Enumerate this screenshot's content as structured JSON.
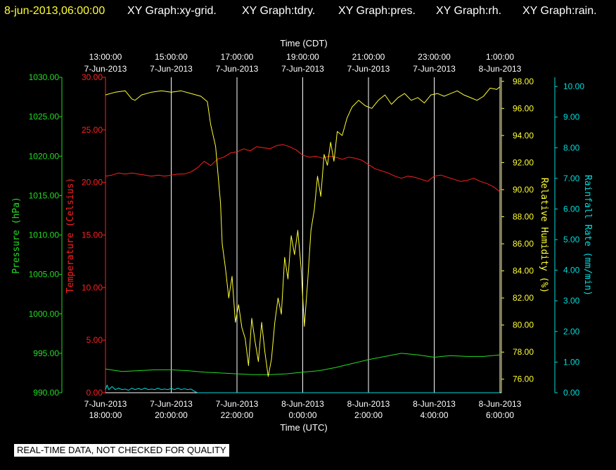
{
  "header": {
    "timestamp": "8-jun-2013,06:00:00",
    "graphs": [
      "XY Graph:xy-grid.",
      "XY Graph:tdry.",
      "XY Graph:pres.",
      "XY Graph:rh.",
      "XY Graph:rain."
    ]
  },
  "footer": {
    "quality_note": "REAL-TIME DATA, NOT CHECKED FOR QUALITY"
  },
  "colors": {
    "background": "#000000",
    "grid": "#ffffff",
    "temperature": "#ff2020",
    "pressure": "#22dd22",
    "humidity": "#ffff33",
    "rainfall": "#00dddd",
    "header_timestamp": "#ffff33",
    "header_text": "#ffffff"
  },
  "chart_data": {
    "type": "line",
    "grid": true,
    "x_top": {
      "title": "Time (CDT)",
      "ticks": [
        {
          "time": "13:00:00",
          "date": "7-Jun-2013"
        },
        {
          "time": "15:00:00",
          "date": "7-Jun-2013"
        },
        {
          "time": "17:00:00",
          "date": "7-Jun-2013"
        },
        {
          "time": "19:00:00",
          "date": "7-Jun-2013"
        },
        {
          "time": "21:00:00",
          "date": "7-Jun-2013"
        },
        {
          "time": "23:00:00",
          "date": "7-Jun-2013"
        },
        {
          "time": "1:00:00",
          "date": "8-Jun-2013"
        }
      ]
    },
    "x_bottom": {
      "title": "Time (UTC)",
      "ticks": [
        {
          "date": "7-Jun-2013",
          "time": "18:00:00"
        },
        {
          "date": "7-Jun-2013",
          "time": "20:00:00"
        },
        {
          "date": "7-Jun-2013",
          "time": "22:00:00"
        },
        {
          "date": "8-Jun-2013",
          "time": "0:00:00"
        },
        {
          "date": "8-Jun-2013",
          "time": "2:00:00"
        },
        {
          "date": "8-Jun-2013",
          "time": "4:00:00"
        },
        {
          "date": "8-Jun-2013",
          "time": "6:00:00"
        }
      ]
    },
    "x_unit": "hours since 2013-06-07 18:00 UTC",
    "xlim": [
      0,
      12
    ],
    "axes": {
      "pressure": {
        "label": "Pressure (hPa)",
        "ylim": [
          990,
          1030
        ],
        "ticks": [
          "1030.00",
          "1025.00",
          "1020.00",
          "1015.00",
          "1010.00",
          "1005.00",
          "1000.00",
          "995.00",
          "990.00"
        ]
      },
      "temperature": {
        "label": "Temperature (Celsius)",
        "ylim": [
          0,
          30
        ],
        "ticks": [
          "30.00",
          "25.00",
          "20.00",
          "15.00",
          "10.00",
          "5.00",
          "0.00"
        ]
      },
      "humidity": {
        "label": "Relative Humidity (%)",
        "ylim": [
          75,
          98.3
        ],
        "ticks": [
          "98.00",
          "96.00",
          "94.00",
          "92.00",
          "90.00",
          "88.00",
          "86.00",
          "84.00",
          "82.00",
          "80.00",
          "78.00",
          "76.00"
        ]
      },
      "rainfall": {
        "label": "Rainfall Rate (mm/min)",
        "ylim": [
          0,
          10.3
        ],
        "ticks": [
          "10.00",
          "9.00",
          "8.00",
          "7.00",
          "6.00",
          "5.00",
          "4.00",
          "3.00",
          "2.00",
          "1.00",
          "0.00"
        ]
      }
    },
    "series": [
      {
        "name": "Temperature (Celsius)",
        "axis": "temperature",
        "color_key": "temperature",
        "x": [
          0,
          0.2,
          0.4,
          0.6,
          0.8,
          1.0,
          1.2,
          1.4,
          1.6,
          1.8,
          2.0,
          2.2,
          2.4,
          2.6,
          2.8,
          3.0,
          3.2,
          3.4,
          3.6,
          3.8,
          4.0,
          4.2,
          4.4,
          4.6,
          4.8,
          5.0,
          5.2,
          5.4,
          5.6,
          5.8,
          6.0,
          6.2,
          6.4,
          6.6,
          6.8,
          7.0,
          7.2,
          7.4,
          7.6,
          7.8,
          8.0,
          8.2,
          8.4,
          8.6,
          8.8,
          9.0,
          9.2,
          9.4,
          9.6,
          9.8,
          10.0,
          10.2,
          10.4,
          10.6,
          10.8,
          11.0,
          11.2,
          11.4,
          11.6,
          11.8,
          12.0
        ],
        "y": [
          20.6,
          20.7,
          20.9,
          20.8,
          20.9,
          20.8,
          20.7,
          20.6,
          20.7,
          20.6,
          20.7,
          20.8,
          20.8,
          21.0,
          21.4,
          22.0,
          21.6,
          22.2,
          22.4,
          22.8,
          22.9,
          23.2,
          23.0,
          23.4,
          23.3,
          23.2,
          23.5,
          23.6,
          23.4,
          23.1,
          22.6,
          22.4,
          22.5,
          22.3,
          22.5,
          22.4,
          22.2,
          22.4,
          22.3,
          22.1,
          21.7,
          21.3,
          21.1,
          20.9,
          20.6,
          20.4,
          20.6,
          20.5,
          20.3,
          20.1,
          20.6,
          20.7,
          20.5,
          20.3,
          20.1,
          20.2,
          20.4,
          20.1,
          19.9,
          19.6,
          19.1
        ]
      },
      {
        "name": "Pressure (hPa)",
        "axis": "pressure",
        "color_key": "pressure",
        "x": [
          0,
          0.5,
          1.0,
          1.5,
          2.0,
          2.5,
          3.0,
          3.5,
          4.0,
          4.5,
          5.0,
          5.5,
          6.0,
          6.5,
          7.0,
          7.5,
          8.0,
          8.5,
          9.0,
          9.5,
          10.0,
          10.5,
          11.0,
          11.5,
          12.0
        ],
        "y": [
          993.0,
          992.7,
          992.8,
          992.9,
          992.9,
          992.8,
          992.6,
          992.5,
          992.4,
          992.3,
          992.3,
          992.4,
          992.6,
          992.8,
          993.2,
          993.7,
          994.2,
          994.6,
          995.0,
          994.8,
          994.5,
          994.7,
          994.6,
          994.6,
          994.8
        ]
      },
      {
        "name": "Relative Humidity (%)",
        "axis": "humidity",
        "color_key": "humidity",
        "x": [
          0,
          0.3,
          0.6,
          0.8,
          0.9,
          1.1,
          1.4,
          1.7,
          2.0,
          2.3,
          2.6,
          2.9,
          3.1,
          3.2,
          3.35,
          3.5,
          3.55,
          3.65,
          3.75,
          3.85,
          3.95,
          4.05,
          4.15,
          4.25,
          4.35,
          4.45,
          4.55,
          4.65,
          4.75,
          4.85,
          4.95,
          5.05,
          5.15,
          5.25,
          5.35,
          5.45,
          5.55,
          5.65,
          5.75,
          5.85,
          5.95,
          6.05,
          6.15,
          6.25,
          6.35,
          6.45,
          6.55,
          6.65,
          6.75,
          6.85,
          6.95,
          7.05,
          7.2,
          7.35,
          7.5,
          7.7,
          7.9,
          8.1,
          8.3,
          8.5,
          8.7,
          8.9,
          9.1,
          9.3,
          9.5,
          9.7,
          9.9,
          10.1,
          10.3,
          10.5,
          10.7,
          10.9,
          11.1,
          11.3,
          11.5,
          11.7,
          11.9,
          12.0
        ],
        "y": [
          97.0,
          97.2,
          97.3,
          96.7,
          96.6,
          97.0,
          97.2,
          97.3,
          97.2,
          97.3,
          97.1,
          96.9,
          96.5,
          94.8,
          93.2,
          89.0,
          86.0,
          84.2,
          82.0,
          83.6,
          80.2,
          81.5,
          79.8,
          79.0,
          77.0,
          80.5,
          78.8,
          77.3,
          80.2,
          78.0,
          76.2,
          77.5,
          80.2,
          82.0,
          80.8,
          85.0,
          83.4,
          86.6,
          85.2,
          87.0,
          84.2,
          79.9,
          83.2,
          87.0,
          88.5,
          91.0,
          89.5,
          92.6,
          91.8,
          93.5,
          92.1,
          94.3,
          94.0,
          95.3,
          96.1,
          96.6,
          96.2,
          96.0,
          96.6,
          97.0,
          96.3,
          96.8,
          97.1,
          96.6,
          96.8,
          96.4,
          97.0,
          97.1,
          96.9,
          97.1,
          97.3,
          97.0,
          96.8,
          96.6,
          96.9,
          97.5,
          97.4,
          97.6
        ]
      },
      {
        "name": "Rainfall Rate (mm/min)",
        "axis": "rainfall",
        "color_key": "rainfall",
        "x": [
          0,
          0.05,
          0.1,
          0.2,
          0.3,
          0.4,
          0.5,
          0.6,
          0.7,
          0.8,
          0.9,
          1.0,
          1.1,
          1.2,
          1.3,
          1.4,
          1.5,
          1.6,
          1.7,
          1.8,
          1.9,
          2.0,
          2.1,
          2.2,
          2.3,
          2.4,
          2.5,
          2.6,
          2.7,
          2.8,
          3.0,
          4.0,
          6.0,
          8.0,
          10.0,
          12.0
        ],
        "y": [
          0.1,
          0.25,
          0.1,
          0.2,
          0.1,
          0.15,
          0.1,
          0.12,
          0.08,
          0.15,
          0.1,
          0.14,
          0.1,
          0.15,
          0.1,
          0.12,
          0.1,
          0.15,
          0.1,
          0.12,
          0.1,
          0.14,
          0.1,
          0.15,
          0.1,
          0.13,
          0.1,
          0.12,
          0.05,
          0.0,
          0.0,
          0.0,
          0.0,
          0.0,
          0.0,
          0.0
        ]
      }
    ]
  }
}
